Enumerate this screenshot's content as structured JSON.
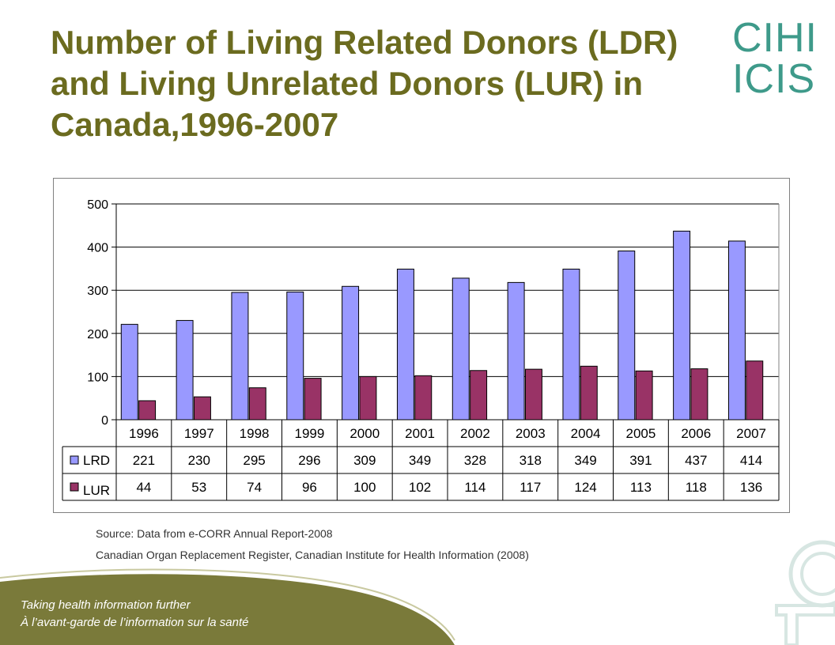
{
  "title": "Number of Living Related Donors (LDR) and Living Unrelated Donors (LUR) in Canada,1996-2007",
  "logo": {
    "line1": "CIHI",
    "line2": "ICIS"
  },
  "colors": {
    "title": "#6B6B1F",
    "lrd": "#9999FF",
    "lur": "#993366",
    "footer_band": "#7A7A3A",
    "logo_teal": "#3E9A8A"
  },
  "chart_data": {
    "type": "bar",
    "categories": [
      "1996",
      "1997",
      "1998",
      "1999",
      "2000",
      "2001",
      "2002",
      "2003",
      "2004",
      "2005",
      "2006",
      "2007"
    ],
    "series": [
      {
        "name": "LRD",
        "values": [
          221,
          230,
          295,
          296,
          309,
          349,
          328,
          318,
          349,
          391,
          437,
          414
        ]
      },
      {
        "name": "LUR",
        "values": [
          44,
          53,
          74,
          96,
          100,
          102,
          114,
          117,
          124,
          113,
          118,
          136
        ]
      }
    ],
    "ylim": [
      0,
      500
    ],
    "yticks": [
      0,
      100,
      200,
      300,
      400,
      500
    ],
    "grid": true,
    "legend": "data-table-below"
  },
  "source": {
    "line1": "Source: Data from e-CORR Annual Report-2008",
    "line2": "Canadian Organ Replacement Register, Canadian Institute for Health Information (2008)"
  },
  "footer": {
    "tagline_en": "Taking health information further",
    "tagline_fr": "À l’avant-garde de l’information sur la santé"
  }
}
